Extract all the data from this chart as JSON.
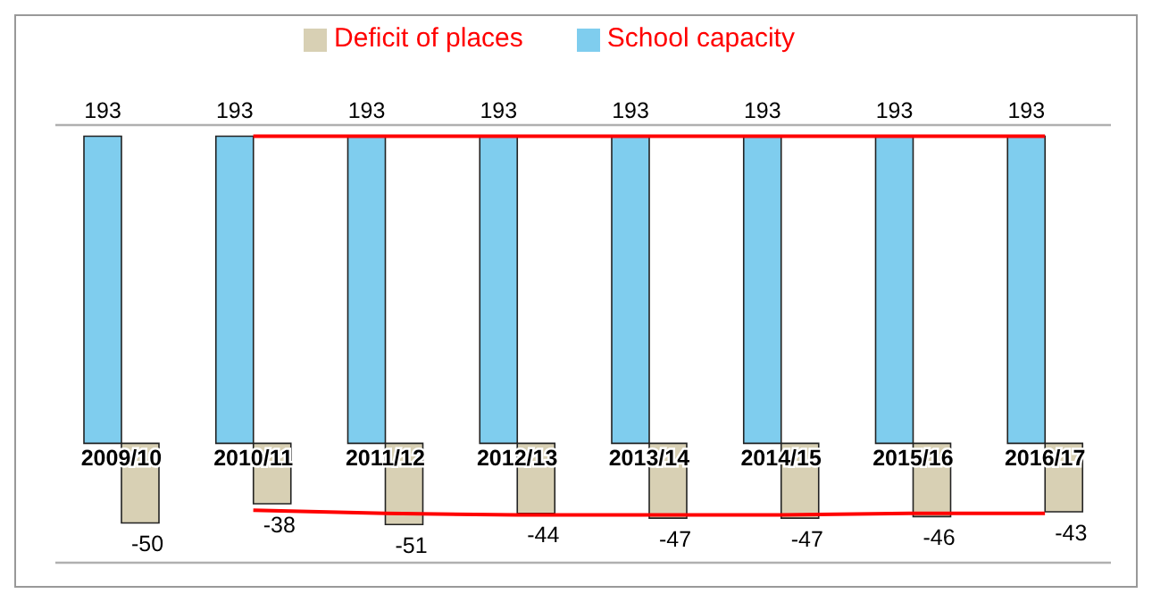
{
  "chart_data": {
    "type": "bar",
    "categories": [
      "2009/10",
      "2010/11",
      "2011/12",
      "2012/13",
      "2013/14",
      "2014/15",
      "2015/16",
      "2016/17"
    ],
    "series": [
      {
        "name": "School capacity",
        "color": "#7fcdee",
        "values": [
          193,
          193,
          193,
          193,
          193,
          193,
          193,
          193
        ],
        "value_labels": [
          "193",
          "193",
          "193",
          "193",
          "193",
          "193",
          "193",
          "193"
        ]
      },
      {
        "name": "Deficit of places",
        "color": "#d8d0b4",
        "values": [
          -50,
          -38,
          -51,
          -44,
          -47,
          -47,
          -46,
          -43
        ],
        "value_labels": [
          "-50",
          "-38",
          "-51",
          "-44",
          "-47",
          "-47",
          "-46",
          "-43"
        ]
      },
      {
        "type": "line",
        "color": "#ff0000",
        "values": [
          null,
          193,
          193,
          193,
          193,
          193,
          193,
          193
        ]
      },
      {
        "type": "line",
        "color": "#ff0000",
        "values": [
          null,
          -42,
          -44,
          -45,
          -45,
          -45,
          -44,
          -44
        ]
      }
    ],
    "ylim": [
      -75,
      200
    ],
    "grid": "y",
    "legend": "top",
    "tick_labels": "x"
  }
}
